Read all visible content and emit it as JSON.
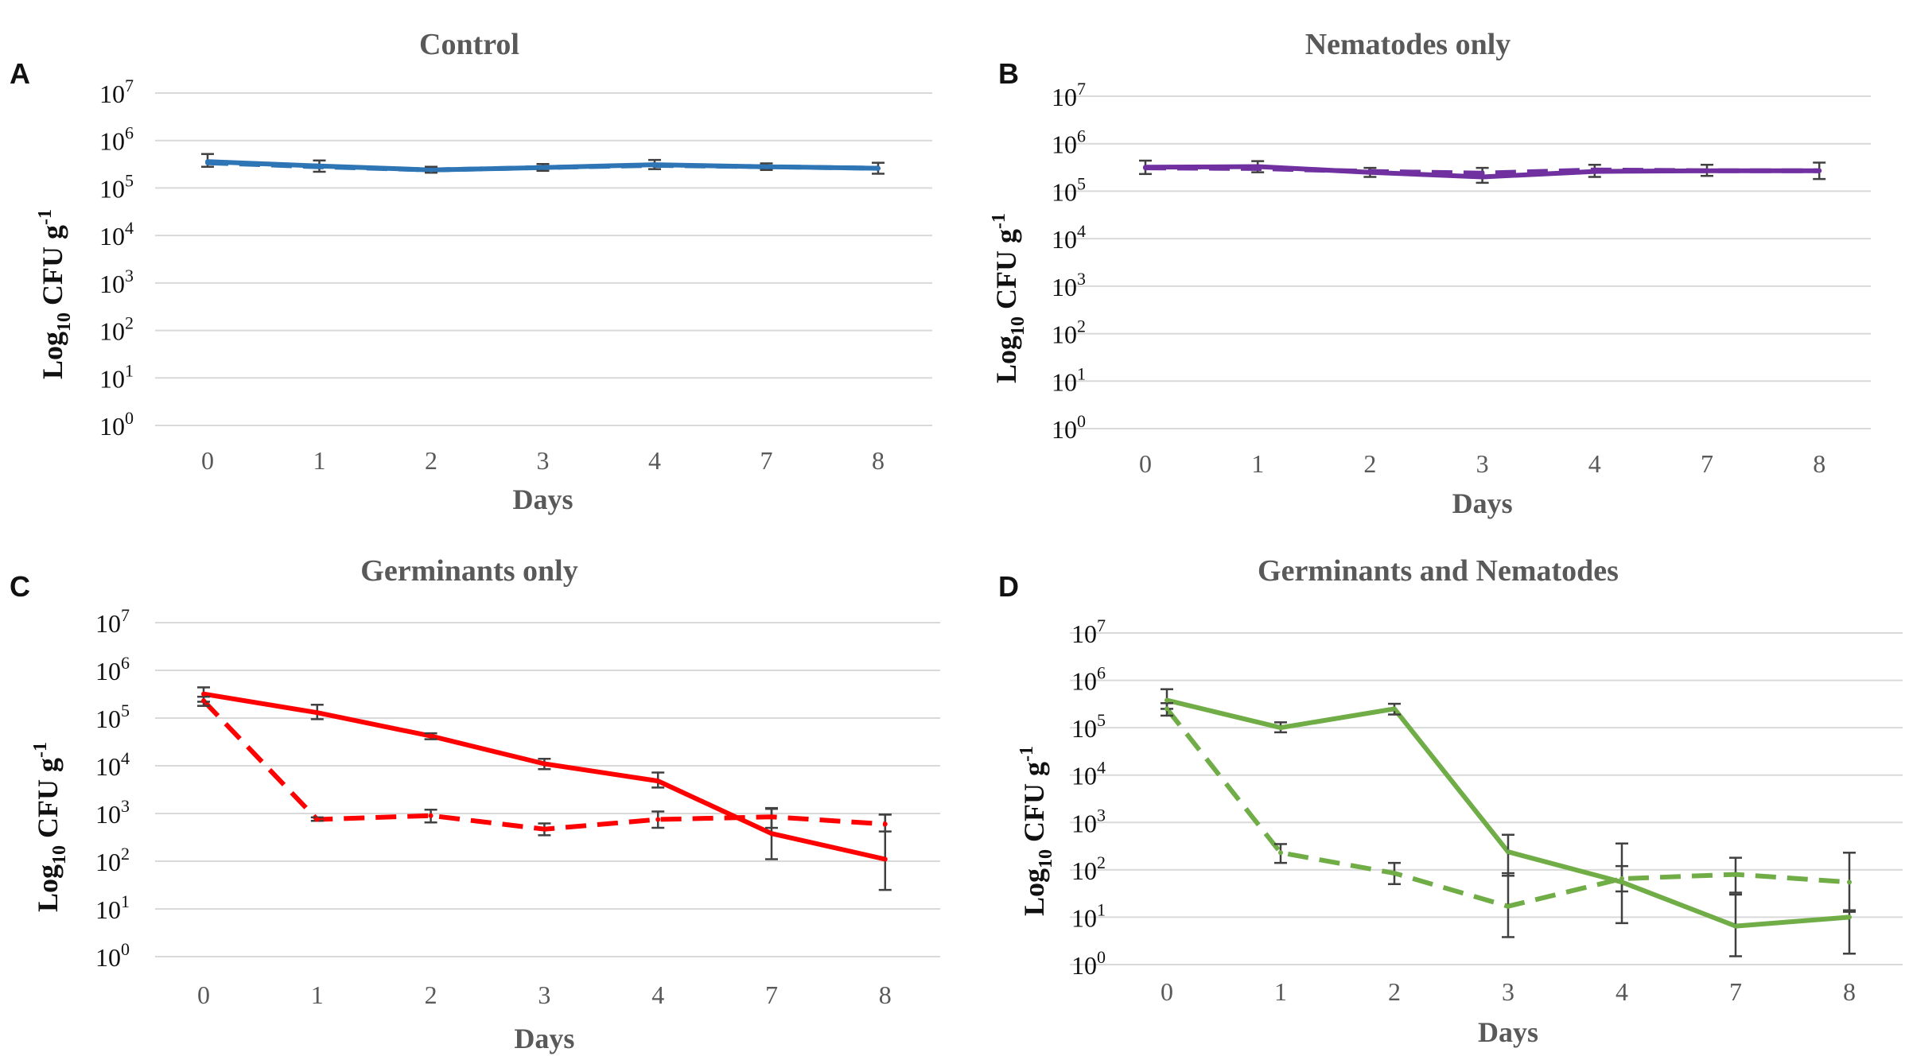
{
  "chart_data": [
    {
      "panel": "A",
      "type": "line",
      "title": "Control",
      "xlabel": "Days",
      "ylabel": "Log10 CFU g-1",
      "ylabel_parts": {
        "main": "Log",
        "sub": "10",
        "unit": " CFU g",
        "sup": "-1"
      },
      "categories": [
        "0",
        "1",
        "2",
        "3",
        "4",
        "7",
        "8"
      ],
      "yscale": "log10",
      "ylim_exp": [
        0,
        7
      ],
      "ytick_base": "10",
      "ytick_exponents": [
        "0",
        "1",
        "2",
        "3",
        "4",
        "5",
        "6",
        "7"
      ],
      "color": "#2e75b6",
      "series": [
        {
          "name": "solid",
          "style": "solid",
          "values": [
            360000,
            290000,
            240000,
            270000,
            310000,
            280000,
            260000
          ],
          "err_low": [
            280000,
            220000,
            210000,
            230000,
            250000,
            240000,
            200000
          ],
          "err_high": [
            520000,
            380000,
            280000,
            320000,
            390000,
            330000,
            340000
          ]
        },
        {
          "name": "dashed",
          "style": "dashed",
          "values": [
            340000,
            280000,
            240000,
            270000,
            300000,
            280000,
            260000
          ],
          "err_low": [],
          "err_high": []
        }
      ]
    },
    {
      "panel": "B",
      "type": "line",
      "title": "Nematodes only",
      "xlabel": "Days",
      "ylabel": "Log10 CFU g-1",
      "ylabel_parts": {
        "main": "Log",
        "sub": "10",
        "unit": " CFU g",
        "sup": "-1"
      },
      "categories": [
        "0",
        "1",
        "2",
        "3",
        "4",
        "7",
        "8"
      ],
      "yscale": "log10",
      "ylim_exp": [
        0,
        7
      ],
      "ytick_base": "10",
      "ytick_exponents": [
        "0",
        "1",
        "2",
        "3",
        "4",
        "5",
        "6",
        "7"
      ],
      "color": "#7030a0",
      "series": [
        {
          "name": "solid",
          "style": "solid",
          "values": [
            320000,
            330000,
            250000,
            200000,
            260000,
            270000,
            270000
          ],
          "err_low": [
            230000,
            250000,
            200000,
            150000,
            200000,
            210000,
            180000
          ],
          "err_high": [
            440000,
            430000,
            310000,
            310000,
            360000,
            360000,
            400000
          ]
        },
        {
          "name": "dashed",
          "style": "dashed",
          "values": [
            310000,
            300000,
            260000,
            240000,
            280000,
            270000,
            270000
          ],
          "err_low": [],
          "err_high": []
        }
      ]
    },
    {
      "panel": "C",
      "type": "line",
      "title": "Germinants only",
      "xlabel": "Days",
      "ylabel": "Log10 CFU g-1",
      "ylabel_parts": {
        "main": "Log",
        "sub": "10",
        "unit": " CFU g",
        "sup": "-1"
      },
      "categories": [
        "0",
        "1",
        "2",
        "3",
        "4",
        "7",
        "8"
      ],
      "yscale": "log10",
      "ylim_exp": [
        0,
        7
      ],
      "ytick_base": "10",
      "ytick_exponents": [
        "0",
        "1",
        "2",
        "3",
        "4",
        "5",
        "6",
        "7"
      ],
      "color": "#ff0000",
      "series": [
        {
          "name": "solid",
          "style": "solid",
          "values": [
            320000,
            130000,
            42000,
            11000,
            4800,
            380,
            110
          ],
          "err_low": [
            220000,
            95000,
            36000,
            8500,
            3500,
            110,
            25
          ],
          "err_high": [
            440000,
            190000,
            48000,
            14000,
            7200,
            1300,
            950
          ]
        },
        {
          "name": "dashed",
          "style": "dashed",
          "values": [
            230000,
            750,
            900,
            470,
            750,
            850,
            600
          ],
          "err_low": [
            180000,
            700,
            650,
            350,
            500,
            500,
            420
          ],
          "err_high": [
            280000,
            830,
            1200,
            620,
            1100,
            1250,
            950
          ]
        }
      ]
    },
    {
      "panel": "D",
      "type": "line",
      "title": "Germinants and Nematodes",
      "xlabel": "Days",
      "ylabel": "Log10 CFU g-1",
      "ylabel_parts": {
        "main": "Log",
        "sub": "10",
        "unit": " CFU g",
        "sup": "-1"
      },
      "categories": [
        "0",
        "1",
        "2",
        "3",
        "4",
        "7",
        "8"
      ],
      "yscale": "log10",
      "ylim_exp": [
        0,
        7
      ],
      "ytick_base": "10",
      "ytick_exponents": [
        "0",
        "1",
        "2",
        "3",
        "4",
        "5",
        "6",
        "7"
      ],
      "color": "#70ad47",
      "series": [
        {
          "name": "solid",
          "style": "solid",
          "values": [
            380000,
            100000,
            250000,
            240,
            55,
            6.5,
            10
          ],
          "err_low": [
            250000,
            80000,
            190000,
            75,
            7.5,
            1.5,
            1.7
          ],
          "err_high": [
            650000,
            130000,
            320000,
            550,
            120,
            30,
            14
          ]
        },
        {
          "name": "dashed",
          "style": "dashed",
          "values": [
            250000,
            230,
            85,
            17,
            65,
            80,
            55
          ],
          "err_low": [
            180000,
            140,
            50,
            3.8,
            35,
            33,
            13
          ],
          "err_high": [
            330000,
            350,
            140,
            85,
            360,
            180,
            230
          ]
        }
      ]
    }
  ]
}
